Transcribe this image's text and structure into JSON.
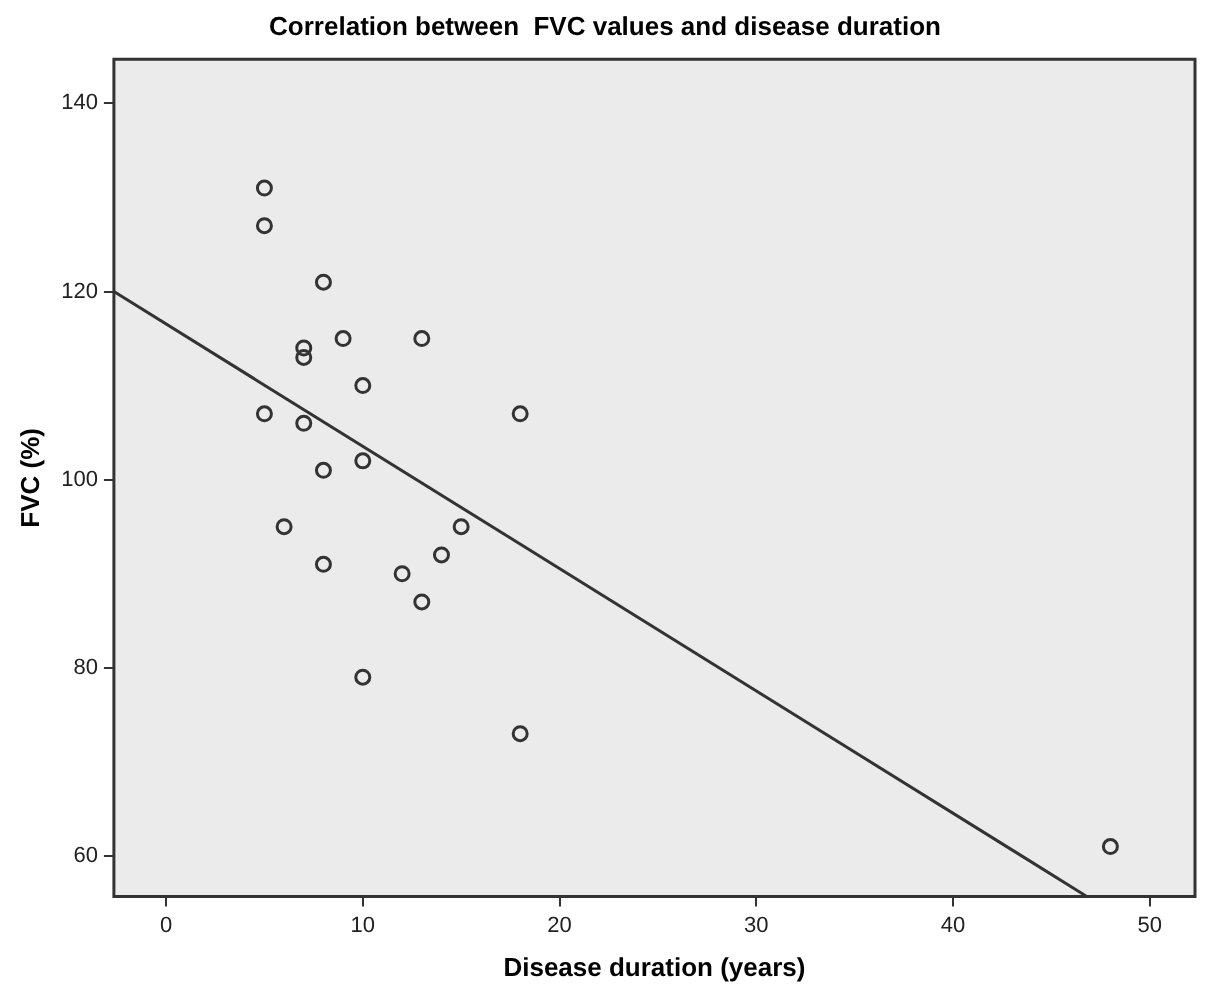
{
  "chart_data": {
    "type": "scatter",
    "title": "Correlation between  FVC values and disease duration",
    "xlabel": "Disease duration (years)",
    "ylabel": "FVC (%)",
    "xlim": [
      -2.65,
      52.3
    ],
    "ylim": [
      55.7,
      144.7
    ],
    "xticks": [
      0,
      10,
      20,
      30,
      40,
      50
    ],
    "yticks": [
      60,
      80,
      100,
      120,
      140
    ],
    "grid": false,
    "legend": false,
    "series": [
      {
        "marker": "circle",
        "color": "#333333",
        "x": [
          5,
          5,
          8,
          7,
          7,
          9,
          13,
          10,
          5,
          7,
          18,
          10,
          8,
          6,
          15,
          14,
          8,
          12,
          13,
          10,
          18,
          48
        ],
        "values": [
          131,
          127,
          121,
          114,
          113,
          115,
          115,
          110,
          107,
          106,
          107,
          102,
          101,
          95,
          95,
          92,
          91,
          90,
          87,
          79,
          73,
          61
        ]
      },
      {
        "type": "line",
        "marker": "none",
        "color": "#333333",
        "x": [
          -2.65,
          46.8
        ],
        "values": [
          120,
          55.7
        ]
      }
    ]
  }
}
